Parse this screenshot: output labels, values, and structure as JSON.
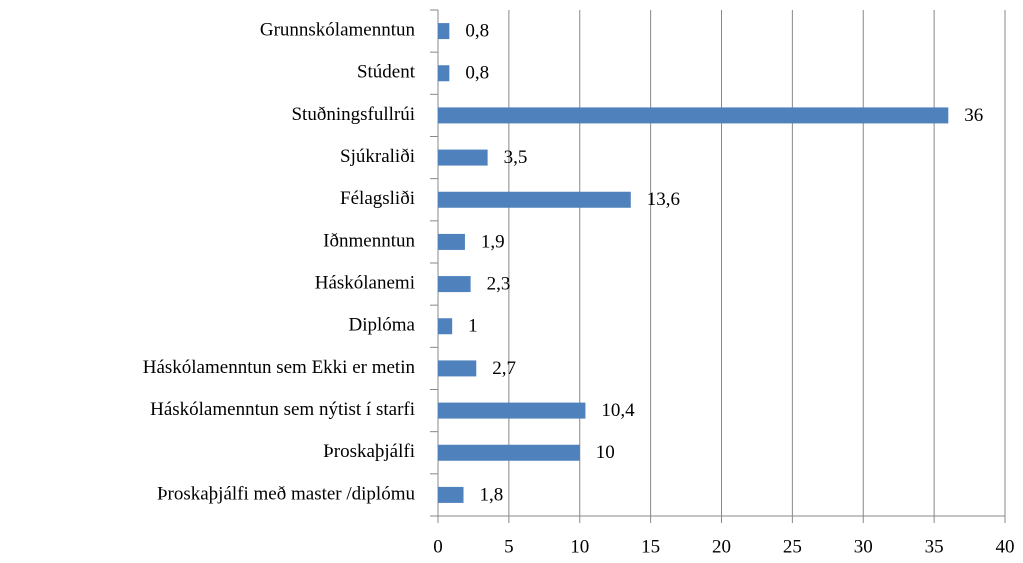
{
  "chart_data": {
    "type": "bar",
    "orientation": "horizontal",
    "categories": [
      "Grunnskólamenntun",
      "Stúdent",
      "Stuðningsfullrúi",
      "Sjúkraliði",
      "Félagsliði",
      "Iðnmenntun",
      "Háskólanemi",
      "Diplóma",
      "Háskólamenntun sem Ekki er metin",
      "Háskólamenntun sem nýtist í starfi",
      "Þroskaþjálfi",
      "Þroskaþjálfi með master /diplómu"
    ],
    "values": [
      0.8,
      0.8,
      36,
      3.5,
      13.6,
      1.9,
      2.3,
      1,
      2.7,
      10.4,
      10,
      1.8
    ],
    "value_labels": [
      "0,8",
      "0,8",
      "36",
      "3,5",
      "13,6",
      "1,9",
      "2,3",
      "1",
      "2,7",
      "10,4",
      "10",
      "1,8"
    ],
    "color": "#4f81bd",
    "xlim": [
      0,
      40
    ],
    "xticks": [
      0,
      5,
      10,
      15,
      20,
      25,
      30,
      35,
      40
    ],
    "grid": true
  }
}
